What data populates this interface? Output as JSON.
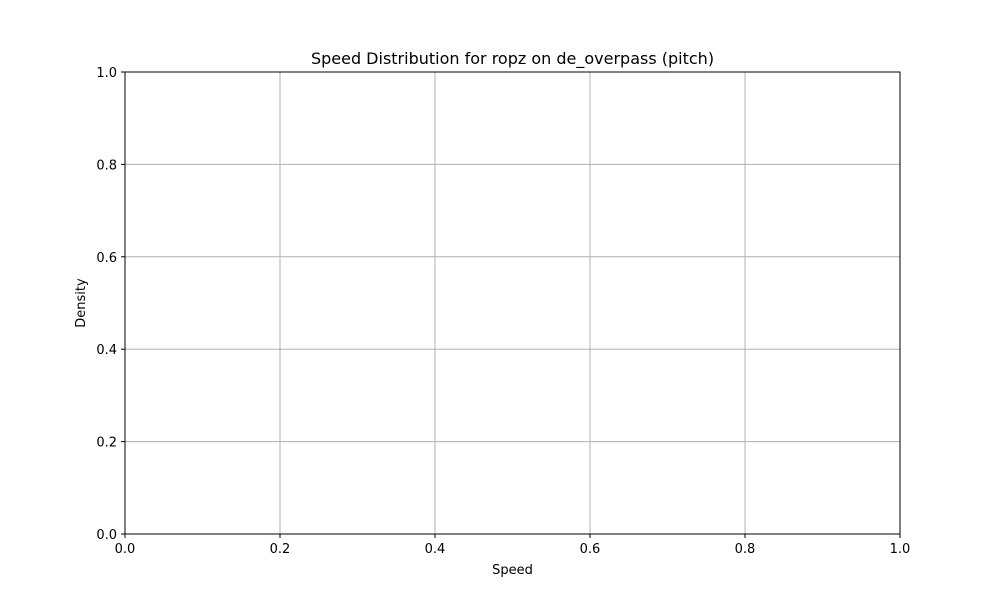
{
  "chart_data": {
    "type": "line",
    "title": "Speed Distribution for ropz on de_overpass (pitch)",
    "xlabel": "Speed",
    "ylabel": "Density",
    "xlim": [
      0.0,
      1.0
    ],
    "ylim": [
      0.0,
      1.0
    ],
    "xticks": [
      0.0,
      0.2,
      0.4,
      0.6,
      0.8,
      1.0
    ],
    "xtick_labels": [
      "0.0",
      "0.2",
      "0.4",
      "0.6",
      "0.8",
      "1.0"
    ],
    "yticks": [
      0.0,
      0.2,
      0.4,
      0.6,
      0.8,
      1.0
    ],
    "ytick_labels": [
      "0.0",
      "0.2",
      "0.4",
      "0.6",
      "0.8",
      "1.0"
    ],
    "grid": true,
    "series": [],
    "colors": {
      "grid": "#b0b0b0",
      "axes": "#000000",
      "background": "#ffffff"
    }
  }
}
